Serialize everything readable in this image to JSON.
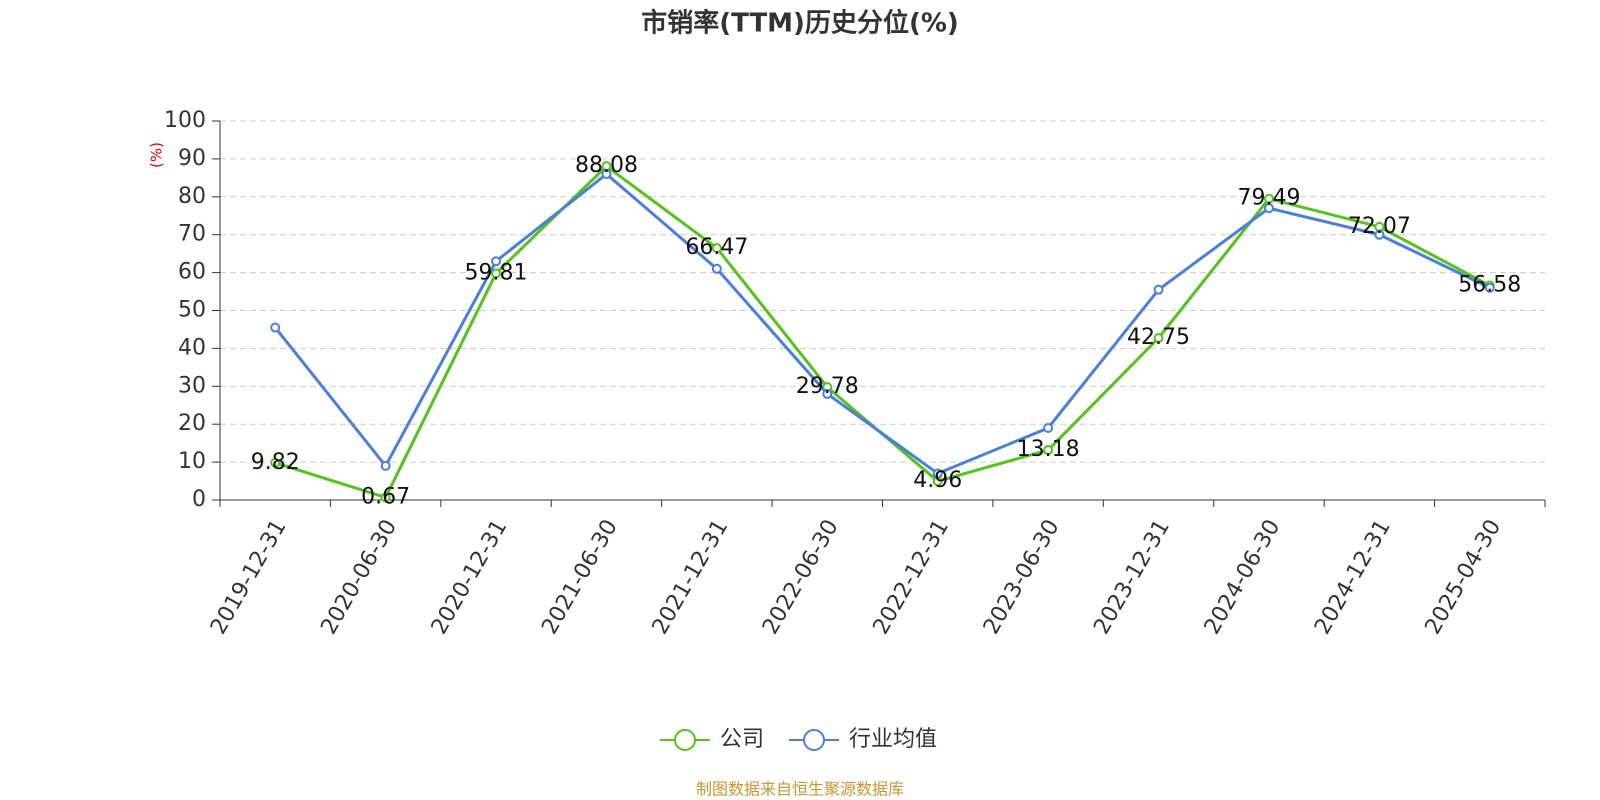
{
  "chart_data": {
    "type": "line",
    "title": "市销率(TTM)历史分位(%)",
    "y_label": "(%)",
    "source": "制图数据来自恒生聚源数据库",
    "categories": [
      "2019-12-31",
      "2020-06-30",
      "2020-12-31",
      "2021-06-30",
      "2021-12-31",
      "2022-06-30",
      "2022-12-31",
      "2023-06-30",
      "2023-12-31",
      "2024-06-30",
      "2024-12-31",
      "2025-04-30"
    ],
    "series": [
      {
        "name": "公司",
        "color": "#52c41a",
        "values": [
          9.82,
          0.67,
          59.81,
          88.08,
          66.47,
          29.78,
          4.96,
          13.18,
          42.75,
          79.49,
          72.07,
          56.58
        ],
        "show_labels": true
      },
      {
        "name": "行业均值",
        "color": "#4a7fdc",
        "values": [
          45.5,
          9,
          63,
          86,
          61,
          28,
          7,
          19,
          55.5,
          77,
          70,
          56
        ],
        "show_labels": false
      }
    ],
    "ylim": [
      0,
      100
    ],
    "yticks": [
      0,
      10,
      20,
      30,
      40,
      50,
      60,
      70,
      80,
      90,
      100
    ],
    "grid": true
  }
}
